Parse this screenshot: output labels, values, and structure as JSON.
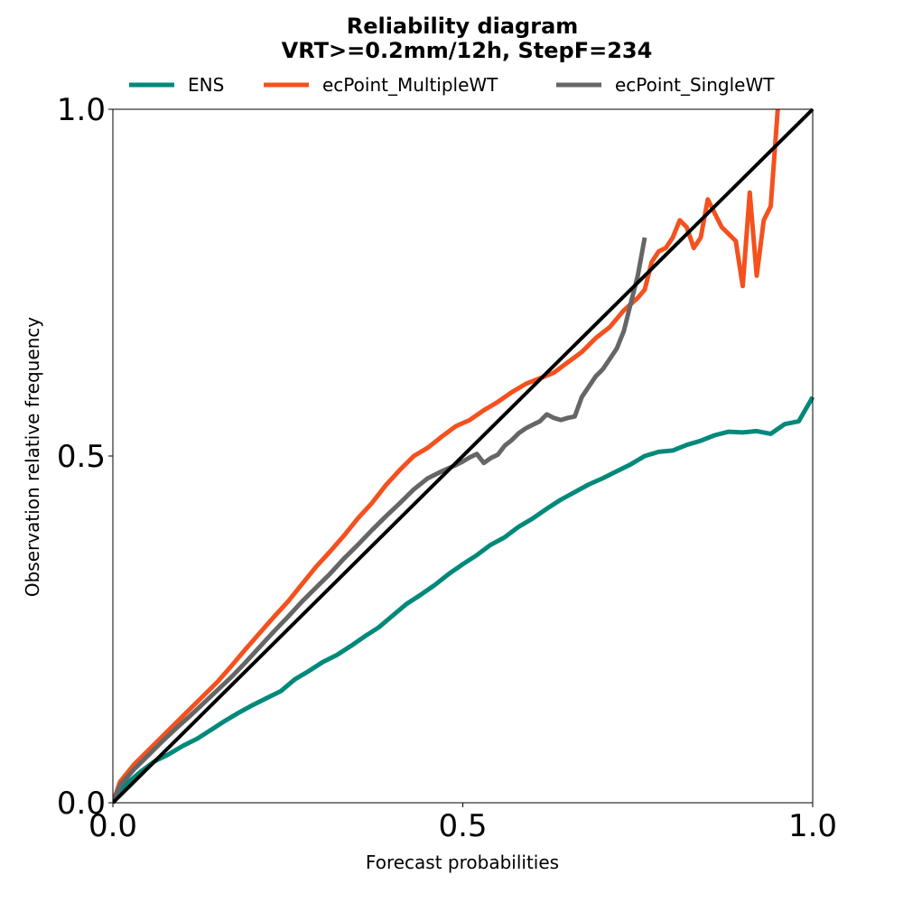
{
  "chart_data": {
    "type": "line",
    "title": "Reliability diagram",
    "subtitle": "VRT>=0.2mm/12h, StepF=234",
    "xlabel": "Forecast probabilities",
    "ylabel": "Observation relative frequency",
    "xlim": [
      0.0,
      1.0
    ],
    "ylim": [
      0.0,
      1.0
    ],
    "xticks": [
      "0.0",
      "0.5",
      "1.0"
    ],
    "yticks": [
      "0.0",
      "0.5",
      "1.0"
    ],
    "grid": false,
    "legend_position": "top",
    "diagonal": {
      "x": [
        0.0,
        1.0
      ],
      "y": [
        0.0,
        1.0
      ],
      "color": "#000000"
    },
    "series": [
      {
        "name": "ENS",
        "color": "#00897b",
        "x": [
          0.0,
          0.02,
          0.04,
          0.06,
          0.08,
          0.1,
          0.12,
          0.14,
          0.16,
          0.18,
          0.2,
          0.22,
          0.24,
          0.26,
          0.28,
          0.3,
          0.32,
          0.34,
          0.36,
          0.38,
          0.4,
          0.42,
          0.44,
          0.46,
          0.48,
          0.5,
          0.52,
          0.54,
          0.56,
          0.58,
          0.6,
          0.62,
          0.64,
          0.66,
          0.68,
          0.7,
          0.72,
          0.74,
          0.76,
          0.78,
          0.8,
          0.82,
          0.84,
          0.86,
          0.88,
          0.9,
          0.92,
          0.94,
          0.96,
          0.98,
          1.0
        ],
        "y": [
          0.0,
          0.028,
          0.045,
          0.06,
          0.07,
          0.082,
          0.092,
          0.105,
          0.118,
          0.13,
          0.141,
          0.151,
          0.161,
          0.178,
          0.19,
          0.203,
          0.213,
          0.226,
          0.24,
          0.253,
          0.27,
          0.287,
          0.3,
          0.314,
          0.33,
          0.344,
          0.357,
          0.372,
          0.383,
          0.398,
          0.41,
          0.424,
          0.437,
          0.448,
          0.459,
          0.468,
          0.478,
          0.488,
          0.5,
          0.506,
          0.508,
          0.516,
          0.522,
          0.53,
          0.535,
          0.534,
          0.536,
          0.532,
          0.546,
          0.55,
          0.585
        ]
      },
      {
        "name": "ecPoint_MultipleWT",
        "color": "#f4511e",
        "x": [
          0.0,
          0.01,
          0.03,
          0.05,
          0.07,
          0.09,
          0.11,
          0.13,
          0.15,
          0.17,
          0.19,
          0.21,
          0.23,
          0.25,
          0.27,
          0.29,
          0.31,
          0.33,
          0.35,
          0.37,
          0.39,
          0.41,
          0.43,
          0.45,
          0.47,
          0.49,
          0.51,
          0.53,
          0.55,
          0.57,
          0.59,
          0.61,
          0.63,
          0.65,
          0.67,
          0.69,
          0.71,
          0.73,
          0.75,
          0.76,
          0.77,
          0.78,
          0.79,
          0.8,
          0.81,
          0.82,
          0.83,
          0.84,
          0.85,
          0.86,
          0.87,
          0.88,
          0.89,
          0.9,
          0.91,
          0.92,
          0.93,
          0.94,
          0.95
        ],
        "y": [
          0.0,
          0.03,
          0.055,
          0.075,
          0.095,
          0.115,
          0.135,
          0.155,
          0.175,
          0.198,
          0.222,
          0.245,
          0.268,
          0.29,
          0.315,
          0.34,
          0.362,
          0.385,
          0.41,
          0.432,
          0.458,
          0.48,
          0.5,
          0.512,
          0.528,
          0.543,
          0.552,
          0.566,
          0.578,
          0.592,
          0.604,
          0.612,
          0.62,
          0.635,
          0.65,
          0.67,
          0.686,
          0.71,
          0.728,
          0.74,
          0.78,
          0.795,
          0.8,
          0.815,
          0.84,
          0.83,
          0.8,
          0.815,
          0.87,
          0.85,
          0.83,
          0.82,
          0.81,
          0.745,
          0.88,
          0.76,
          0.84,
          0.86,
          1.0
        ]
      },
      {
        "name": "ecPoint_SingleWT",
        "color": "#666666",
        "x": [
          0.0,
          0.01,
          0.03,
          0.05,
          0.07,
          0.09,
          0.11,
          0.13,
          0.15,
          0.17,
          0.19,
          0.21,
          0.23,
          0.25,
          0.27,
          0.29,
          0.31,
          0.33,
          0.35,
          0.37,
          0.39,
          0.41,
          0.43,
          0.45,
          0.47,
          0.49,
          0.5,
          0.51,
          0.52,
          0.53,
          0.54,
          0.55,
          0.56,
          0.57,
          0.58,
          0.59,
          0.6,
          0.61,
          0.62,
          0.63,
          0.64,
          0.65,
          0.66,
          0.67,
          0.68,
          0.69,
          0.7,
          0.71,
          0.72,
          0.73,
          0.74,
          0.75,
          0.76
        ],
        "y": [
          0.0,
          0.025,
          0.048,
          0.068,
          0.088,
          0.107,
          0.125,
          0.144,
          0.163,
          0.182,
          0.203,
          0.225,
          0.247,
          0.268,
          0.29,
          0.31,
          0.33,
          0.352,
          0.372,
          0.393,
          0.413,
          0.432,
          0.452,
          0.468,
          0.478,
          0.487,
          0.492,
          0.498,
          0.503,
          0.49,
          0.497,
          0.502,
          0.515,
          0.523,
          0.533,
          0.54,
          0.545,
          0.55,
          0.56,
          0.555,
          0.552,
          0.555,
          0.557,
          0.585,
          0.6,
          0.615,
          0.625,
          0.64,
          0.655,
          0.68,
          0.72,
          0.76,
          0.815
        ]
      }
    ]
  }
}
